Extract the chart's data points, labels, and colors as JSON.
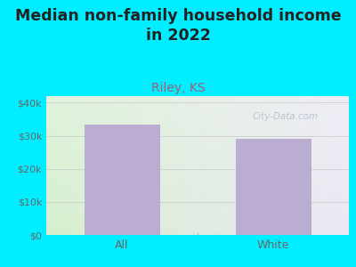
{
  "title": "Median non-family household income\nin 2022",
  "subtitle": "Riley, KS",
  "categories": [
    "All",
    "White"
  ],
  "values": [
    33500,
    29200
  ],
  "bar_color": "#bbadd1",
  "title_fontsize": 12.5,
  "subtitle_fontsize": 10,
  "subtitle_color": "#a06070",
  "title_color": "#222222",
  "background_color": "#00eeff",
  "ylim": [
    0,
    42000
  ],
  "yticks": [
    0,
    10000,
    20000,
    30000,
    40000
  ],
  "tick_labels": [
    "$0",
    "$10k",
    "$20k",
    "$30k",
    "$40k"
  ],
  "watermark": "City-Data.com",
  "tick_color": "#666666",
  "grid_color": "#cccccc"
}
